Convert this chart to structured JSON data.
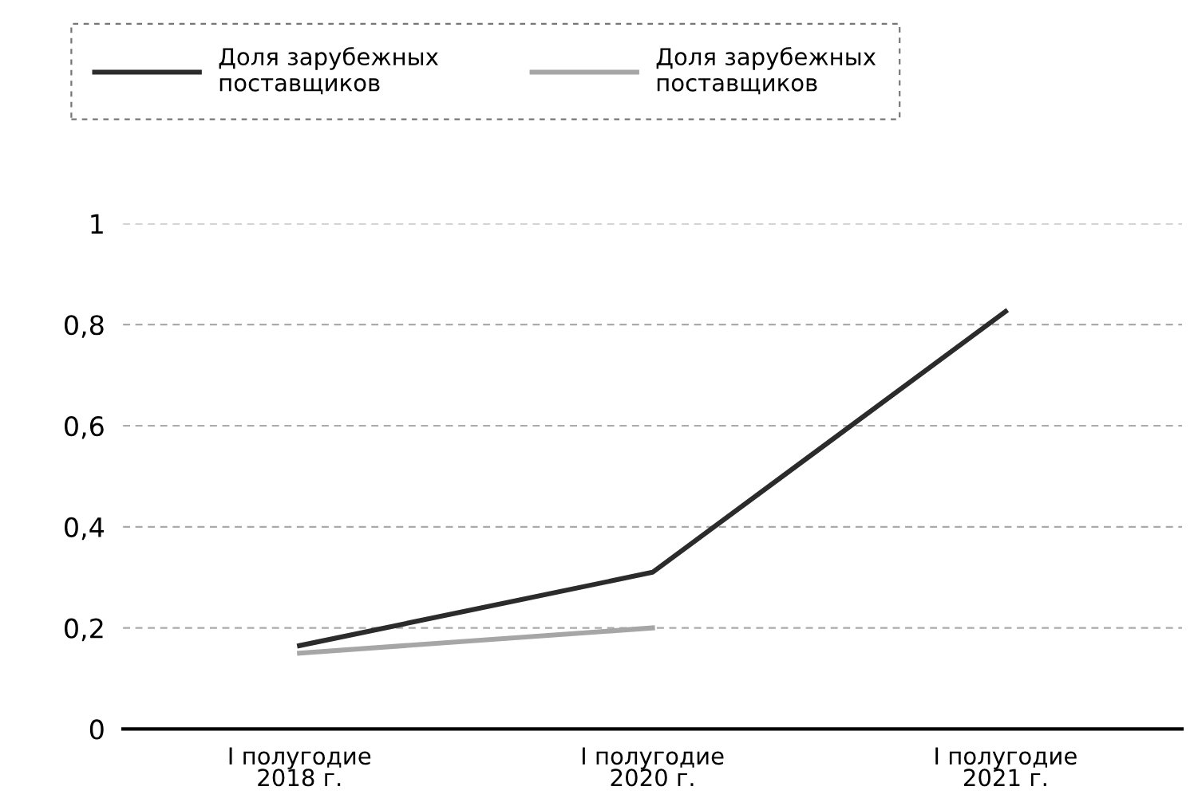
{
  "chart_data": {
    "type": "line",
    "categories": [
      "I полугодие\n2018 г.",
      "I полугодие\n2020 г.",
      "I полугодие\n2021 г."
    ],
    "series": [
      {
        "name": "Доля зарубежных\nпоставщиков",
        "color": "#2b2b2b",
        "values": [
          0.165,
          0.31,
          0.826
        ]
      },
      {
        "name": "Доля зарубежных\nпоставщиков",
        "color": "#a6a6a6",
        "values": [
          0.15,
          0.2,
          null
        ]
      }
    ],
    "ylim": [
      0,
      1
    ],
    "yticks": [
      {
        "value": 0,
        "label": "0"
      },
      {
        "value": 0.2,
        "label": "0,2"
      },
      {
        "value": 0.4,
        "label": "0,4"
      },
      {
        "value": 0.6,
        "label": "0,6"
      },
      {
        "value": 0.8,
        "label": "0,8"
      },
      {
        "value": 1,
        "label": "1"
      }
    ],
    "grid": "y",
    "legend": "top left",
    "marker": "none",
    "line_style": "solid"
  }
}
